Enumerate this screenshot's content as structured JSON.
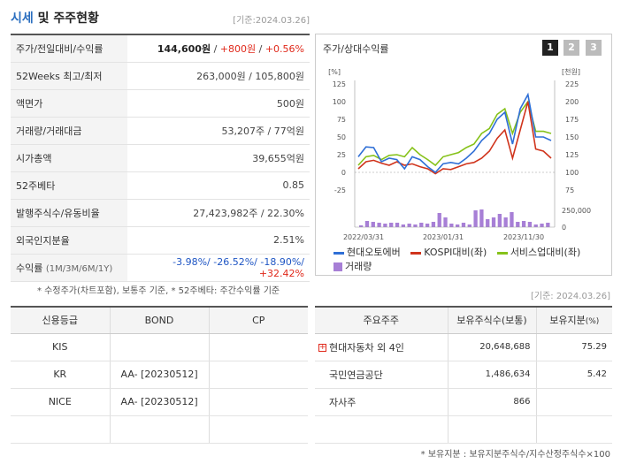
{
  "header": {
    "title_accent": "시세",
    "title_rest": " 및 주주현황",
    "date": "[기준:2024.03.26]"
  },
  "price_rows": [
    {
      "label": "주가/전일대비/수익률"
    },
    {
      "label": "52Weeks 최고/최저",
      "value": "263,000원 / 105,800원"
    },
    {
      "label": "액면가",
      "value": "500원"
    },
    {
      "label": "거래량/거래대금",
      "value": "53,207주 / 77억원"
    },
    {
      "label": "시가총액",
      "value": "39,655억원"
    },
    {
      "label": "52주베타",
      "value": "0.85"
    },
    {
      "label": "발행주식수/유동비율",
      "value": "27,423,982주 / 22.30%"
    },
    {
      "label": "외국인지분율",
      "value": "2.51%"
    },
    {
      "label": "수익률",
      "label_sub": "(1M/3M/6M/1Y)"
    }
  ],
  "price_detail": {
    "price": "144,600원",
    "sep": " / ",
    "change": "+800원",
    "rate": "+0.56%"
  },
  "returns": {
    "r1m": "-3.98%/",
    "r3m": " -26.52%/",
    "r6m": " -18.90%/",
    "r1y": " +32.42%"
  },
  "note1": "* 수정주가(차트포함), 보통주 기준, * 52주베타: 주간수익률 기준",
  "date2": "[기준: 2024.03.26]",
  "chart": {
    "title": "주가/상대수익률",
    "pages": [
      "1",
      "2",
      "3"
    ],
    "left_unit": "[%]",
    "right_unit": "[천원]",
    "left_ticks": [
      "125",
      "100",
      "75",
      "50",
      "25",
      "0",
      "-25"
    ],
    "right_ticks": [
      "225",
      "200",
      "175",
      "150",
      "125",
      "100",
      "75"
    ],
    "vol_tick_top": "250,000",
    "vol_tick_bottom": "0",
    "x_labels": [
      "2022/03/31",
      "2023/01/31",
      "2023/11/30"
    ],
    "legend": [
      "현대오토에버",
      "KOSPI대비(좌)",
      "서비스업대비(좌)",
      "거래량"
    ]
  },
  "chart_data": {
    "type": "line",
    "y_left_range": [
      -25,
      125
    ],
    "y_right_range": [
      75,
      225
    ],
    "colors": {
      "series1": "#2f6fd6",
      "series2": "#d0341c",
      "series3": "#86c21a",
      "volume": "#a77fd6"
    },
    "series": [
      {
        "name": "현대오토에버",
        "values": [
          22,
          36,
          35,
          15,
          20,
          18,
          5,
          22,
          18,
          8,
          0,
          12,
          14,
          12,
          20,
          30,
          45,
          55,
          75,
          85,
          40,
          90,
          110,
          50,
          50,
          45
        ]
      },
      {
        "name": "KOSPI대비(좌)",
        "values": [
          5,
          15,
          17,
          13,
          10,
          15,
          10,
          12,
          8,
          5,
          -2,
          5,
          4,
          8,
          12,
          14,
          20,
          30,
          48,
          60,
          20,
          60,
          100,
          33,
          30,
          20
        ]
      },
      {
        "name": "서비스업대비(좌)",
        "values": [
          10,
          22,
          24,
          18,
          24,
          25,
          22,
          35,
          25,
          18,
          10,
          22,
          25,
          28,
          35,
          40,
          55,
          62,
          82,
          90,
          55,
          85,
          100,
          58,
          58,
          55
        ]
      }
    ],
    "volume": [
      0.1,
      0.35,
      0.3,
      0.25,
      0.2,
      0.25,
      0.25,
      0.15,
      0.2,
      0.15,
      0.25,
      0.2,
      0.3,
      0.8,
      0.55,
      0.2,
      0.15,
      0.25,
      0.15,
      0.95,
      1.0,
      0.45,
      0.55,
      0.75,
      0.55,
      0.85,
      0.3,
      0.35,
      0.3,
      0.15,
      0.2,
      0.25
    ]
  },
  "credit": {
    "headers": [
      "신용등급",
      "BOND",
      "CP"
    ],
    "rows": [
      {
        "agency": "KIS",
        "bond": "",
        "cp": ""
      },
      {
        "agency": "KR",
        "bond": "AA-  [20230512]",
        "cp": ""
      },
      {
        "agency": "NICE",
        "bond": "AA-  [20230512]",
        "cp": ""
      },
      {
        "agency": "",
        "bond": "",
        "cp": ""
      }
    ]
  },
  "holders": {
    "headers": [
      "주요주주",
      "보유주식수(보통)",
      "보유지분"
    ],
    "pct_unit": "(%)",
    "rows": [
      {
        "name": "현대자동차 외 4인",
        "shares": "20,648,688",
        "pct": "75.29"
      },
      {
        "name": "국민연금공단",
        "shares": "1,486,634",
        "pct": "5.42"
      },
      {
        "name": "자사주",
        "shares": "866",
        "pct": ""
      },
      {
        "name": "",
        "shares": "",
        "pct": ""
      }
    ]
  },
  "note2": "* 보유지분 : 보유지분주식수/지수산정주식수×100"
}
